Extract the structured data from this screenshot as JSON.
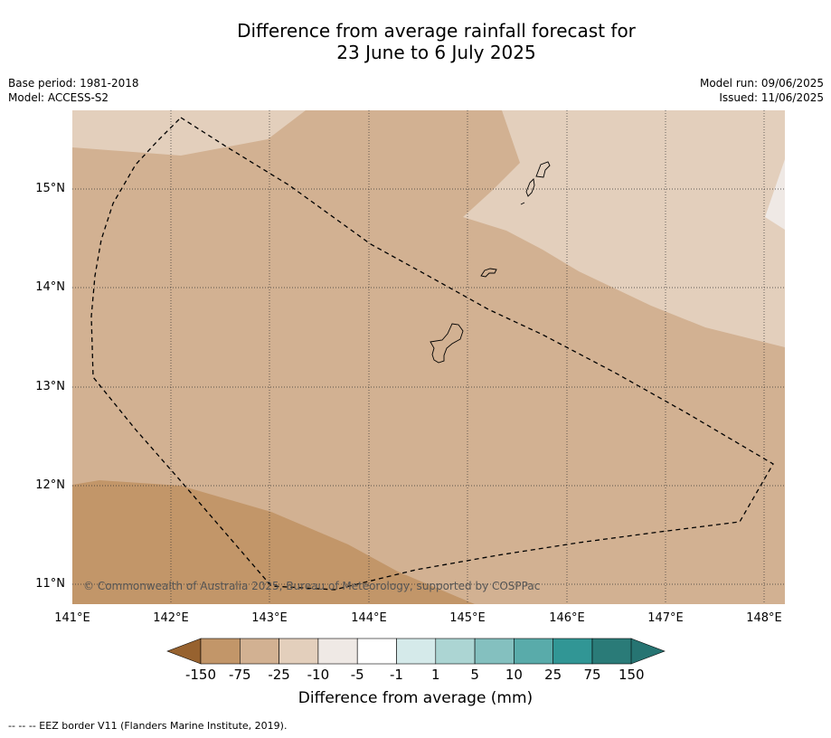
{
  "title": {
    "line1": "Difference from average rainfall forecast for",
    "line2": "23 June to 6 July 2025"
  },
  "meta": {
    "base_period": "Base period: 1981-2018",
    "model": "Model: ACCESS-S2",
    "model_run": "Model run: 09/06/2025",
    "issued": "Issued: 11/06/2025"
  },
  "map": {
    "lat_labels": [
      "15°N",
      "14°N",
      "13°N",
      "12°N",
      "11°N"
    ],
    "lon_labels": [
      "141°E",
      "142°E",
      "143°E",
      "144°E",
      "145°E",
      "146°E",
      "147°E",
      "148°E"
    ],
    "credit": "© Commonwealth of Australia 2025, Bureau of Meteorology, supported by COSPPac",
    "region_colors": {
      "minus_25_to_minus_10": "#d2b192",
      "minus_75_to_minus_25": "#c29669",
      "minus_10_to_minus_5": "#e3cfbc",
      "minus_5_to_minus_1": "#efe9e5"
    }
  },
  "colorbar": {
    "labels": [
      "-150",
      "-75",
      "-25",
      "-10",
      "-5",
      "-1",
      "1",
      "5",
      "10",
      "25",
      "75",
      "150"
    ],
    "colors": [
      "#a9733a",
      "#c29669",
      "#d2b192",
      "#e3cfbc",
      "#efe9e5",
      "#ffffff",
      "#d5eaea",
      "#acd5d3",
      "#84c0bf",
      "#59abaa",
      "#319695",
      "#2a7b78"
    ],
    "low_extension_color": "#97622f",
    "high_extension_color": "#267472",
    "title": "Difference from average (mm)"
  },
  "footer": {
    "legend": "--  --  -- EEZ border V11 (Flanders Marine Institute, 2019)."
  }
}
